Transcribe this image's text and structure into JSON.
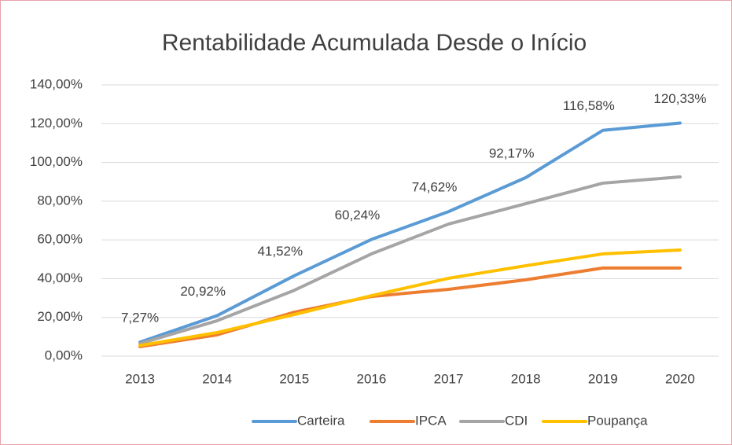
{
  "chart_data": {
    "type": "line",
    "title": "Rentabilidade Acumulada Desde o Início",
    "categories": [
      "2013",
      "2014",
      "2015",
      "2016",
      "2017",
      "2018",
      "2019",
      "2020"
    ],
    "series": [
      {
        "name": "Carteira",
        "color": "#5b9bd5",
        "values": [
          7.27,
          20.92,
          41.52,
          60.24,
          74.62,
          92.17,
          116.58,
          120.33
        ],
        "value_labels": [
          "7,27%",
          "20,92%",
          "41,52%",
          "60,24%",
          "74,62%",
          "92,17%",
          "116,58%",
          "120,33%"
        ]
      },
      {
        "name": "IPCA",
        "color": "#ed7d31",
        "values": [
          4.9,
          11,
          22.7,
          30.8,
          34.5,
          39.4,
          45.5,
          45.5
        ]
      },
      {
        "name": "CDI",
        "color": "#a5a5a5",
        "values": [
          6.5,
          18.3,
          34,
          52.8,
          68.2,
          78.7,
          89.3,
          92.5
        ]
      },
      {
        "name": "Poupança",
        "color": "#ffc000",
        "values": [
          5.5,
          12.2,
          21.5,
          31.2,
          40.2,
          46.7,
          52.8,
          54.8
        ]
      }
    ],
    "ylim": [
      0,
      140
    ],
    "yticks": [
      {
        "value": 0,
        "label": "0,00%"
      },
      {
        "value": 20,
        "label": "20,00%"
      },
      {
        "value": 40,
        "label": "40,00%"
      },
      {
        "value": 60,
        "label": "60,00%"
      },
      {
        "value": 80,
        "label": "80,00%"
      },
      {
        "value": 100,
        "label": "100,00%"
      },
      {
        "value": 120,
        "label": "120,00%"
      },
      {
        "value": 140,
        "label": "140,00%"
      }
    ],
    "grid": true,
    "legend": "bottom"
  }
}
